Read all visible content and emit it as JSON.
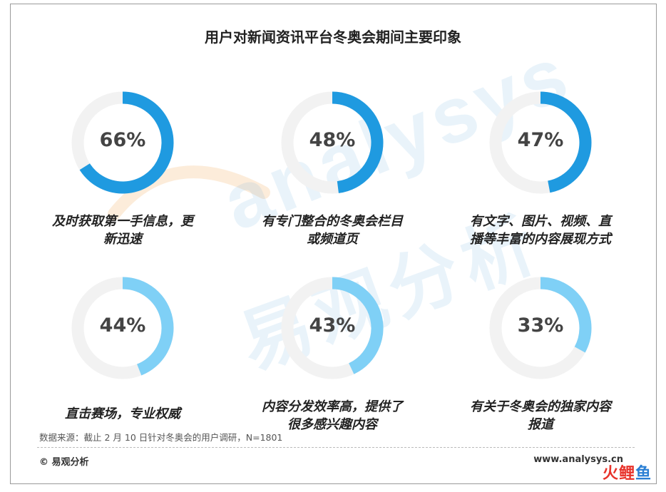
{
  "title": "用户对新闻资讯平台冬奥会期间主要印象",
  "chart_data": {
    "type": "pie",
    "categories": [
      "及时获取第一手信息，更新迅速",
      "有专门整合的冬奥会栏目或频道页",
      "有文字、图片、视频、直播等丰富的内容展现方式",
      "直击赛场，专业权威",
      "内容分发效率高，提供了很多感兴趣内容",
      "有关于冬奥会的独家内容报道"
    ],
    "values": [
      66,
      48,
      47,
      44,
      43,
      33
    ],
    "items": [
      {
        "value": 66,
        "pct_label": "66%",
        "label_lines": [
          "及时获取第一手信息，更",
          "新迅速"
        ]
      },
      {
        "value": 48,
        "pct_label": "48%",
        "label_lines": [
          "有专门整合的冬奥会栏目",
          "或频道页"
        ]
      },
      {
        "value": 47,
        "pct_label": "47%",
        "label_lines": [
          "有文字、图片、视频、直",
          "播等丰富的内容展现方式"
        ]
      },
      {
        "value": 44,
        "pct_label": "44%",
        "label_lines": [
          "直击赛场，专业权威"
        ]
      },
      {
        "value": 43,
        "pct_label": "43%",
        "label_lines": [
          "内容分发效率高，提供了",
          "很多感兴趣内容"
        ]
      },
      {
        "value": 33,
        "pct_label": "33%",
        "label_lines": [
          "有关于冬奥会的独家内容",
          "报道"
        ]
      }
    ],
    "colors": {
      "dark": "#1f9ae0",
      "light": "#7fd0f6",
      "track": "#f2f2f2"
    }
  },
  "source": "数据来源：截止 2 月 10 日针对冬奥会的用户调研，N=1801",
  "footer": {
    "left": "© 易观分析",
    "right": "www.analysys.cn"
  },
  "watermark": {
    "en": "analysys",
    "cn": "易观分析"
  },
  "stamp": {
    "a": "火",
    "b": "鲤",
    "c": "鱼"
  }
}
